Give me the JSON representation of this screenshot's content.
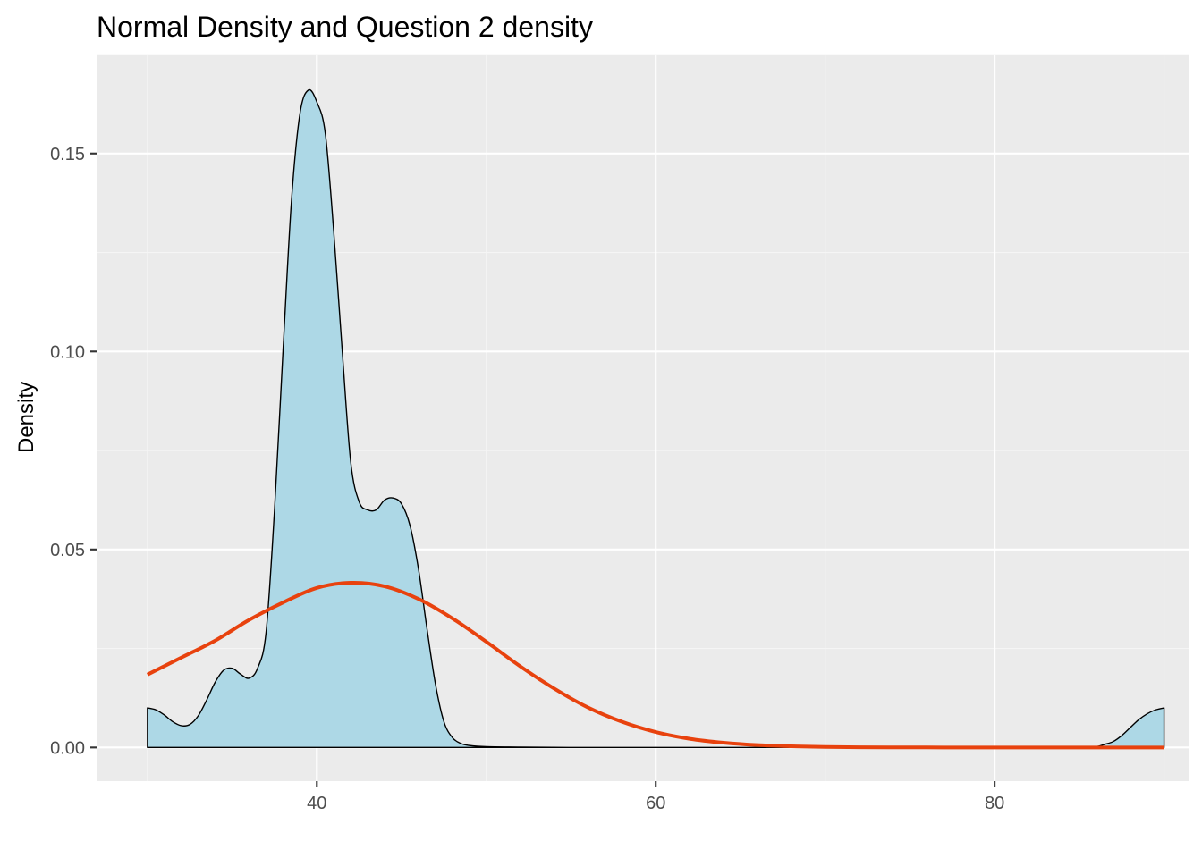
{
  "chart_data": {
    "type": "area",
    "title": "Normal Density and Question 2 density",
    "xlabel": "",
    "ylabel": "Density",
    "xlim": [
      27,
      91.5
    ],
    "ylim": [
      -0.0085,
      0.175
    ],
    "x_ticks": [
      40,
      60,
      80
    ],
    "x_tick_labels": [
      "40",
      "60",
      "80"
    ],
    "y_ticks": [
      0.0,
      0.05,
      0.1,
      0.15
    ],
    "y_tick_labels": [
      "0.00",
      "0.05",
      "0.10",
      "0.15"
    ],
    "grid": true,
    "legend": "none",
    "colors": {
      "panel_background": "#ebebeb",
      "grid_major": "#ffffff",
      "grid_minor": "#f5f5f5",
      "density_fill": "#add8e6",
      "density_outline": "#000000",
      "normal_line": "#e8420e"
    },
    "series": [
      {
        "type": "area",
        "x": [
          30,
          30.5,
          31,
          31.5,
          32,
          32.5,
          33,
          33.5,
          34,
          34.5,
          35,
          35.5,
          36,
          36.5,
          37,
          37.5,
          38,
          38.5,
          39,
          39.5,
          40,
          40.5,
          41,
          41.5,
          42,
          42.5,
          43,
          43.5,
          44,
          44.5,
          45,
          45.5,
          46,
          46.5,
          47,
          47.5,
          48,
          48.5,
          49,
          50,
          52,
          55,
          60,
          70,
          80,
          85,
          86,
          86.5,
          87,
          87.5,
          88,
          88.5,
          89,
          89.5,
          90
        ],
        "values": [
          0.01,
          0.0095,
          0.0082,
          0.0065,
          0.0055,
          0.0058,
          0.008,
          0.012,
          0.0165,
          0.0195,
          0.02,
          0.0185,
          0.0175,
          0.02,
          0.029,
          0.06,
          0.1,
          0.138,
          0.16,
          0.166,
          0.163,
          0.155,
          0.13,
          0.1,
          0.072,
          0.062,
          0.06,
          0.06,
          0.0625,
          0.063,
          0.0615,
          0.056,
          0.045,
          0.03,
          0.016,
          0.0065,
          0.0025,
          0.001,
          0.0005,
          0.0002,
          0.0001,
          0.0,
          0.0,
          0.0,
          0.0,
          0.0,
          0.0002,
          0.0008,
          0.0015,
          0.003,
          0.005,
          0.007,
          0.0085,
          0.0095,
          0.01
        ]
      },
      {
        "type": "line",
        "x": [
          30,
          32,
          34,
          36,
          38,
          40,
          42,
          44,
          46,
          48,
          50,
          52,
          54,
          56,
          58,
          60,
          62,
          64,
          66,
          68,
          70,
          72,
          74,
          76,
          78,
          80,
          82,
          84,
          86,
          88,
          90
        ],
        "values": [
          0.0184,
          0.0227,
          0.027,
          0.0322,
          0.0366,
          0.0403,
          0.0416,
          0.0407,
          0.0375,
          0.0326,
          0.0267,
          0.0205,
          0.0149,
          0.0101,
          0.0065,
          0.0039,
          0.0022,
          0.0012,
          0.0006,
          0.0003,
          0.00013,
          5e-05,
          2e-05,
          1e-05,
          0.0,
          0.0,
          0.0,
          0.0,
          0.0,
          0.0,
          0.0
        ]
      }
    ]
  }
}
